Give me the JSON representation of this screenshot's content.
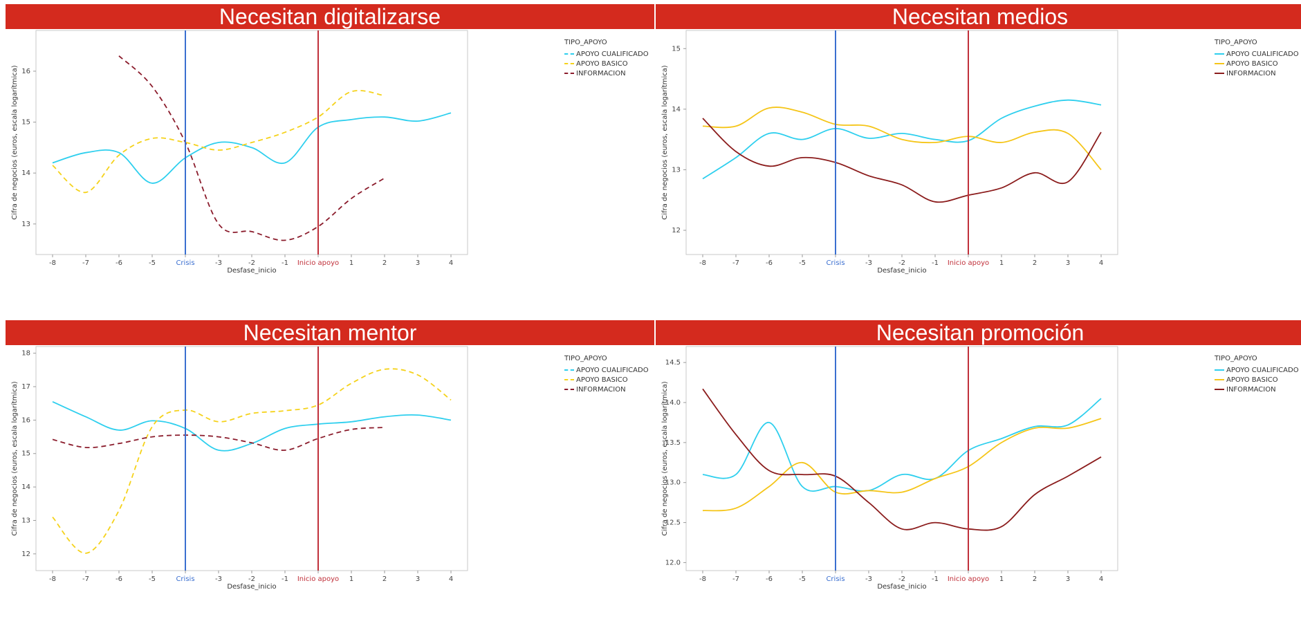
{
  "chart_data": [
    {
      "type": "line",
      "title": "Necesitan digitalizarse",
      "xlabel": "Desfase_inicio",
      "ylabel": "Cifra de negocios (euros, escala logarítmica)",
      "x_ticks": [
        "-8",
        "-7",
        "-6",
        "-5",
        "Crisis",
        "-3",
        "-2",
        "-1",
        "Inicio apoyo",
        "1",
        "2",
        "3",
        "4"
      ],
      "y_ticks": [
        "13",
        "14",
        "15",
        "16"
      ],
      "xlim": [
        -8.5,
        4.5
      ],
      "ylim": [
        12.4,
        16.8
      ],
      "markers": [
        {
          "x": -4,
          "label": "Crisis",
          "color": "#3a6fd0"
        },
        {
          "x": 0,
          "label": "Inicio apoyo",
          "color": "#c0303a"
        }
      ],
      "legend_title": "TIPO_APOYO",
      "dashed": true,
      "series": [
        {
          "name": "APOYO CUALIFICADO",
          "color": "#2ecfee",
          "x": [
            -8,
            -7,
            -6,
            -5,
            -4,
            -3,
            -2,
            -1,
            0,
            1,
            2,
            3,
            4
          ],
          "y": [
            14.2,
            14.4,
            14.4,
            13.8,
            14.3,
            14.6,
            14.5,
            14.2,
            14.9,
            15.05,
            15.1,
            15.02,
            15.18
          ]
        },
        {
          "name": "APOYO BASICO",
          "color": "#f5d21a",
          "x": [
            -8,
            -7,
            -6,
            -5,
            -4,
            -3,
            -2,
            -1,
            0,
            1,
            2
          ],
          "y": [
            14.15,
            13.62,
            14.35,
            14.68,
            14.6,
            14.45,
            14.6,
            14.8,
            15.1,
            15.6,
            15.52
          ]
        },
        {
          "name": "INFORMACION",
          "color": "#8b1c2c",
          "x": [
            -6,
            -5,
            -4,
            -3,
            -2,
            -1,
            0,
            1,
            2
          ],
          "y": [
            16.3,
            15.7,
            14.6,
            13.0,
            12.85,
            12.68,
            12.95,
            13.5,
            13.9
          ]
        }
      ]
    },
    {
      "type": "line",
      "title": "Necesitan medios",
      "xlabel": "Desfase_inicio",
      "ylabel": "Cifra de negocios (euros, escala logarítmica)",
      "x_ticks": [
        "-8",
        "-7",
        "-6",
        "-5",
        "Crisis",
        "-3",
        "-2",
        "-1",
        "Inicio apoyo",
        "1",
        "2",
        "3",
        "4"
      ],
      "y_ticks": [
        "12",
        "13",
        "14",
        "15"
      ],
      "xlim": [
        -8.5,
        4.5
      ],
      "ylim": [
        11.6,
        15.3
      ],
      "markers": [
        {
          "x": -4,
          "label": "Crisis",
          "color": "#3a6fd0"
        },
        {
          "x": 0,
          "label": "Inicio apoyo",
          "color": "#c0303a"
        }
      ],
      "legend_title": "TIPO_APOYO",
      "dashed": false,
      "series": [
        {
          "name": "APOYO CUALIFICADO",
          "color": "#2ecfee",
          "x": [
            -8,
            -7,
            -6,
            -5,
            -4,
            -3,
            -2,
            -1,
            0,
            1,
            2,
            3,
            4
          ],
          "y": [
            12.85,
            13.2,
            13.6,
            13.5,
            13.68,
            13.52,
            13.6,
            13.5,
            13.48,
            13.85,
            14.05,
            14.15,
            14.07
          ]
        },
        {
          "name": "APOYO BASICO",
          "color": "#f5c518",
          "x": [
            -8,
            -7,
            -6,
            -5,
            -4,
            -3,
            -2,
            -1,
            0,
            1,
            2,
            3,
            4
          ],
          "y": [
            13.72,
            13.72,
            14.02,
            13.95,
            13.75,
            13.72,
            13.5,
            13.45,
            13.55,
            13.45,
            13.62,
            13.6,
            13.0
          ]
        },
        {
          "name": "INFORMACION",
          "color": "#8b1c1c",
          "x": [
            -8,
            -7,
            -6,
            -5,
            -4,
            -3,
            -2,
            -1,
            0,
            1,
            2,
            3,
            4
          ],
          "y": [
            13.85,
            13.3,
            13.06,
            13.2,
            13.12,
            12.9,
            12.75,
            12.47,
            12.58,
            12.7,
            12.95,
            12.8,
            13.62
          ]
        }
      ]
    },
    {
      "type": "line",
      "title": "Necesitan mentor",
      "xlabel": "Desfase_inicio",
      "ylabel": "Cifra de negocios (euros, escala logarítmica)",
      "x_ticks": [
        "-8",
        "-7",
        "-6",
        "-5",
        "Crisis",
        "-3",
        "-2",
        "-1",
        "Inicio apoyo",
        "1",
        "2",
        "3",
        "4"
      ],
      "y_ticks": [
        "12",
        "13",
        "14",
        "15",
        "16",
        "17",
        "18"
      ],
      "xlim": [
        -8.5,
        4.5
      ],
      "ylim": [
        11.5,
        18.2
      ],
      "markers": [
        {
          "x": -4,
          "label": "Crisis",
          "color": "#3a6fd0"
        },
        {
          "x": 0,
          "label": "Inicio apoyo",
          "color": "#c0303a"
        }
      ],
      "legend_title": "TIPO_APOYO",
      "dashed": true,
      "series": [
        {
          "name": "APOYO CUALIFICADO",
          "color": "#2ecfee",
          "x": [
            -8,
            -7,
            -6,
            -5,
            -4,
            -3,
            -2,
            -1,
            0,
            1,
            2,
            3,
            4
          ],
          "y": [
            16.55,
            16.1,
            15.7,
            15.98,
            15.75,
            15.1,
            15.3,
            15.75,
            15.88,
            15.95,
            16.1,
            16.15,
            16.0
          ]
        },
        {
          "name": "APOYO BASICO",
          "color": "#f5d21a",
          "x": [
            -8,
            -7,
            -6,
            -5,
            -4,
            -3,
            -2,
            -1,
            0,
            1,
            2,
            3,
            4
          ],
          "y": [
            13.1,
            12.02,
            13.3,
            15.8,
            16.3,
            15.95,
            16.2,
            16.28,
            16.45,
            17.1,
            17.52,
            17.35,
            16.6
          ]
        },
        {
          "name": "INFORMACION",
          "color": "#8b1c2c",
          "x": [
            -8,
            -7,
            -6,
            -5,
            -4,
            -3,
            -2,
            -1,
            0,
            1,
            2
          ],
          "y": [
            15.42,
            15.18,
            15.3,
            15.5,
            15.55,
            15.5,
            15.32,
            15.1,
            15.45,
            15.72,
            15.78
          ]
        }
      ]
    },
    {
      "type": "line",
      "title": "Necesitan promoción",
      "xlabel": "Desfase_inicio",
      "ylabel": "Cifra de negocios (euros, escala logarítmica)",
      "x_ticks": [
        "-8",
        "-7",
        "-6",
        "-5",
        "Crisis",
        "-3",
        "-2",
        "-1",
        "Inicio apoyo",
        "1",
        "2",
        "3",
        "4"
      ],
      "y_ticks": [
        "12.0",
        "12.5",
        "13.0",
        "13.5",
        "14.0",
        "14.5"
      ],
      "xlim": [
        -8.5,
        4.5
      ],
      "ylim": [
        11.9,
        14.7
      ],
      "markers": [
        {
          "x": -4,
          "label": "Crisis",
          "color": "#3a6fd0"
        },
        {
          "x": 0,
          "label": "Inicio apoyo",
          "color": "#c0303a"
        }
      ],
      "legend_title": "TIPO_APOYO",
      "dashed": false,
      "series": [
        {
          "name": "APOYO CUALIFICADO",
          "color": "#2ecfee",
          "x": [
            -8,
            -7,
            -6,
            -5,
            -4,
            -3,
            -2,
            -1,
            0,
            1,
            2,
            3,
            4
          ],
          "y": [
            13.1,
            13.1,
            13.75,
            12.95,
            12.95,
            12.9,
            13.1,
            13.05,
            13.4,
            13.55,
            13.7,
            13.72,
            14.05
          ]
        },
        {
          "name": "APOYO BASICO",
          "color": "#f5c518",
          "x": [
            -8,
            -7,
            -6,
            -5,
            -4,
            -3,
            -2,
            -1,
            0,
            1,
            2,
            3,
            4
          ],
          "y": [
            12.65,
            12.68,
            12.95,
            13.25,
            12.88,
            12.9,
            12.88,
            13.05,
            13.2,
            13.5,
            13.68,
            13.68,
            13.8
          ]
        },
        {
          "name": "INFORMACION",
          "color": "#8b1c1c",
          "x": [
            -8,
            -7,
            -6,
            -5,
            -4,
            -3,
            -2,
            -1,
            0,
            1,
            2,
            3,
            4
          ],
          "y": [
            14.17,
            13.6,
            13.15,
            13.1,
            13.08,
            12.75,
            12.42,
            12.5,
            12.42,
            12.45,
            12.85,
            13.08,
            13.32
          ]
        }
      ]
    }
  ]
}
